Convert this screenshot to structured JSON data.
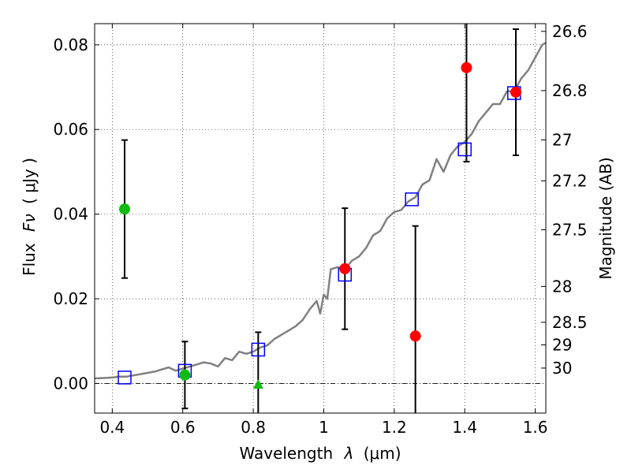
{
  "chart_data": {
    "type": "scatter",
    "xlabel_prefix": "Wavelength",
    "xlabel_symbol": "λ",
    "xlabel_unit": "(μm)",
    "ylabel_prefix": "Flux",
    "ylabel_symbol": "Fν",
    "ylabel_unit": "( μJy )",
    "y2label": "Magnitude (AB)",
    "xlim": [
      0.35,
      1.63
    ],
    "ylim": [
      -0.007,
      0.085
    ],
    "grid": true,
    "x_ticks": [
      {
        "value": 0.4,
        "label": "0.4"
      },
      {
        "value": 0.6,
        "label": "0.6"
      },
      {
        "value": 0.8,
        "label": "0.8"
      },
      {
        "value": 1.0,
        "label": "1"
      },
      {
        "value": 1.2,
        "label": "1.2"
      },
      {
        "value": 1.4,
        "label": "1.4"
      },
      {
        "value": 1.6,
        "label": "1.6"
      }
    ],
    "y_ticks": [
      {
        "value": 0.0,
        "label": "0.00"
      },
      {
        "value": 0.02,
        "label": "0.02"
      },
      {
        "value": 0.04,
        "label": "0.04"
      },
      {
        "value": 0.06,
        "label": "0.06"
      },
      {
        "value": 0.08,
        "label": "0.08"
      }
    ],
    "y2_ticks": [
      {
        "mag": 26.6,
        "label": "26.6"
      },
      {
        "mag": 26.8,
        "label": "26.8"
      },
      {
        "mag": 27.0,
        "label": "27"
      },
      {
        "mag": 27.2,
        "label": "27.2"
      },
      {
        "mag": 27.5,
        "label": "27.5"
      },
      {
        "mag": 28.0,
        "label": "28"
      },
      {
        "mag": 28.5,
        "label": "28.5"
      },
      {
        "mag": 29.0,
        "label": "29"
      },
      {
        "mag": 30.0,
        "label": "30"
      }
    ],
    "model_spectrum": {
      "color": "#808080",
      "points": [
        [
          0.35,
          0.0012
        ],
        [
          0.38,
          0.0013
        ],
        [
          0.4,
          0.0014
        ],
        [
          0.42,
          0.0016
        ],
        [
          0.44,
          0.0016
        ],
        [
          0.46,
          0.0019
        ],
        [
          0.48,
          0.0022
        ],
        [
          0.5,
          0.0025
        ],
        [
          0.52,
          0.0028
        ],
        [
          0.54,
          0.0033
        ],
        [
          0.56,
          0.0038
        ],
        [
          0.58,
          0.003
        ],
        [
          0.6,
          0.0035
        ],
        [
          0.62,
          0.004
        ],
        [
          0.64,
          0.0045
        ],
        [
          0.66,
          0.005
        ],
        [
          0.68,
          0.0047
        ],
        [
          0.7,
          0.004
        ],
        [
          0.72,
          0.006
        ],
        [
          0.74,
          0.0055
        ],
        [
          0.76,
          0.0075
        ],
        [
          0.78,
          0.007
        ],
        [
          0.8,
          0.0075
        ],
        [
          0.82,
          0.0085
        ],
        [
          0.84,
          0.009
        ],
        [
          0.86,
          0.0105
        ],
        [
          0.88,
          0.0115
        ],
        [
          0.9,
          0.0125
        ],
        [
          0.92,
          0.0135
        ],
        [
          0.94,
          0.015
        ],
        [
          0.96,
          0.0175
        ],
        [
          0.98,
          0.0195
        ],
        [
          0.99,
          0.0165
        ],
        [
          1.0,
          0.021
        ],
        [
          1.01,
          0.02
        ],
        [
          1.02,
          0.027
        ],
        [
          1.04,
          0.0275
        ],
        [
          1.06,
          0.027
        ],
        [
          1.08,
          0.029
        ],
        [
          1.1,
          0.03
        ],
        [
          1.12,
          0.032
        ],
        [
          1.14,
          0.035
        ],
        [
          1.16,
          0.036
        ],
        [
          1.18,
          0.039
        ],
        [
          1.2,
          0.0405
        ],
        [
          1.22,
          0.041
        ],
        [
          1.24,
          0.043
        ],
        [
          1.26,
          0.044
        ],
        [
          1.28,
          0.047
        ],
        [
          1.3,
          0.048
        ],
        [
          1.32,
          0.053
        ],
        [
          1.34,
          0.05
        ],
        [
          1.36,
          0.054
        ],
        [
          1.38,
          0.056
        ],
        [
          1.4,
          0.057
        ],
        [
          1.42,
          0.059
        ],
        [
          1.44,
          0.062
        ],
        [
          1.46,
          0.064
        ],
        [
          1.48,
          0.066
        ],
        [
          1.5,
          0.066
        ],
        [
          1.52,
          0.069
        ],
        [
          1.54,
          0.069
        ],
        [
          1.56,
          0.072
        ],
        [
          1.58,
          0.074
        ],
        [
          1.6,
          0.077
        ],
        [
          1.62,
          0.08
        ],
        [
          1.63,
          0.0805
        ]
      ]
    },
    "model_photometry": {
      "marker": "square-open",
      "color": "#0000ff",
      "points": [
        [
          0.435,
          0.0014
        ],
        [
          0.606,
          0.003
        ],
        [
          0.814,
          0.008
        ],
        [
          1.06,
          0.0257
        ],
        [
          1.25,
          0.0435
        ],
        [
          1.4,
          0.0553
        ],
        [
          1.54,
          0.0686
        ]
      ]
    },
    "observed_optical": {
      "marker": "circle",
      "color": "#11bb11",
      "points": [
        {
          "x": 0.435,
          "y": 0.0412,
          "err": 0.0163
        },
        {
          "x": 0.606,
          "y": 0.002,
          "err": 0.0079
        }
      ]
    },
    "observed_upper": {
      "marker": "triangle",
      "color": "#11bb11",
      "points": [
        {
          "x": 0.814,
          "y": -0.0003,
          "err": 0.0124
        }
      ]
    },
    "observed_ir": {
      "marker": "circle",
      "color": "#ff0000",
      "points": [
        {
          "x": 1.06,
          "y": 0.0271,
          "err": 0.0143
        },
        {
          "x": 1.26,
          "y": 0.0112,
          "err": 0.026
        },
        {
          "x": 1.405,
          "y": 0.0746,
          "err": 0.0222
        },
        {
          "x": 1.545,
          "y": 0.0688,
          "err": 0.0149
        }
      ]
    }
  }
}
